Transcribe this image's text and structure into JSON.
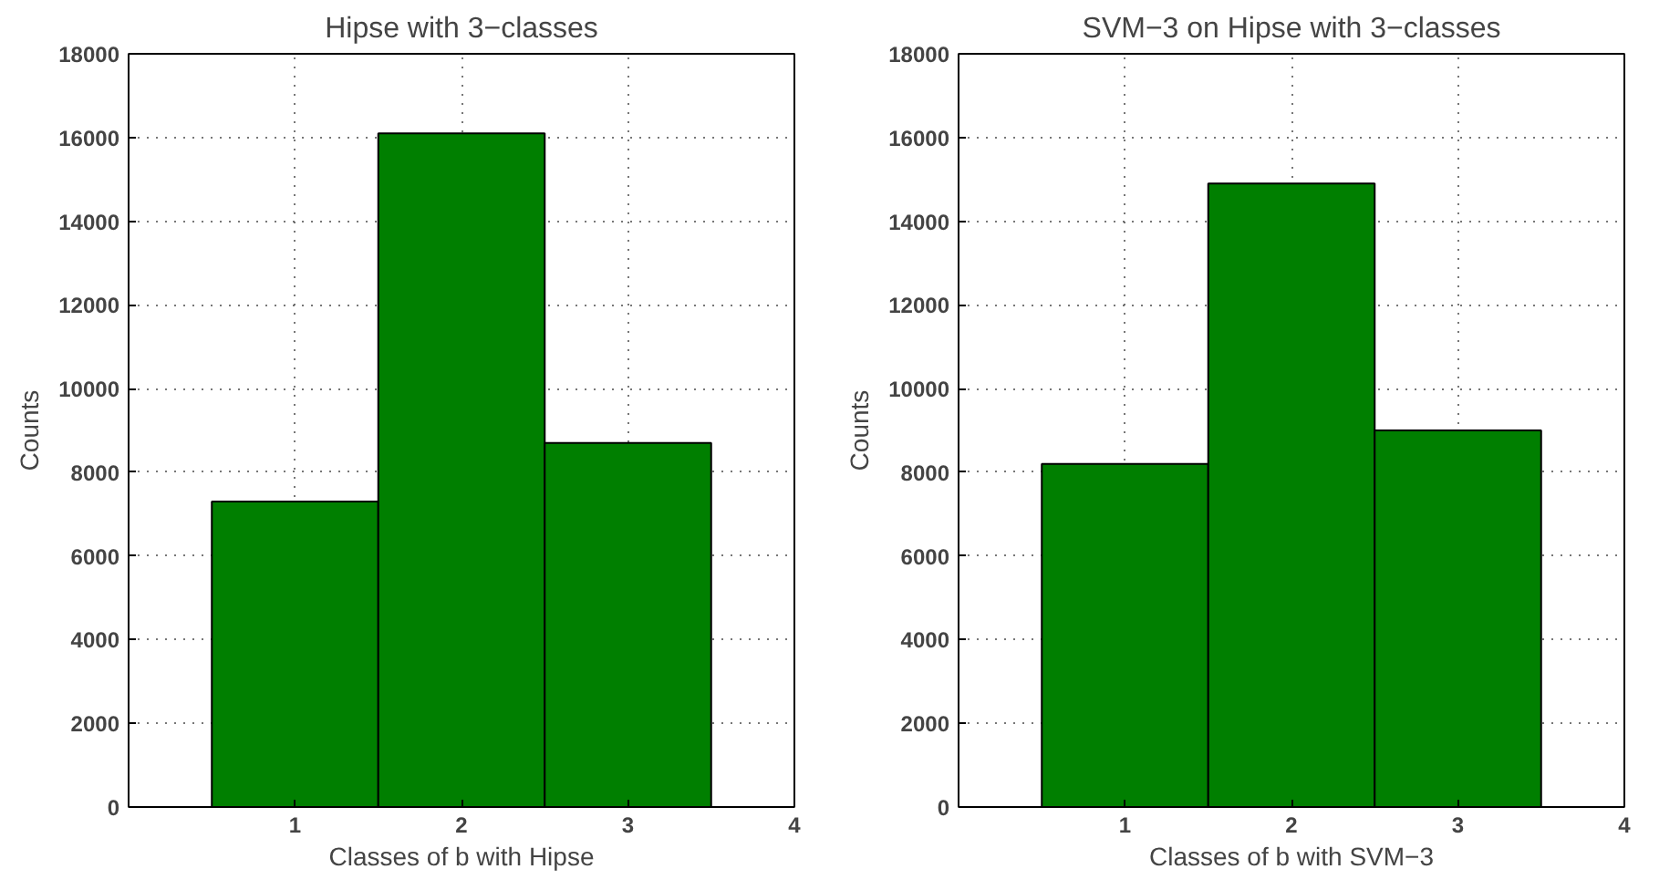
{
  "chart_data": [
    {
      "type": "histogram",
      "title": "Hipse with 3−classes",
      "xlabel": "Classes of b with Hipse",
      "ylabel": "Counts",
      "bins": [
        0.5,
        1.5,
        2.5,
        3.5
      ],
      "values": [
        7300,
        16100,
        8700
      ],
      "color": "#007f00",
      "xlim": [
        0,
        4
      ],
      "xticks": [
        1,
        2,
        3,
        4
      ],
      "ylim": [
        0,
        18000
      ],
      "yticks": [
        0,
        2000,
        4000,
        6000,
        8000,
        10000,
        12000,
        14000,
        16000,
        18000
      ],
      "grid": true
    },
    {
      "type": "histogram",
      "title": "SVM−3 on Hipse with 3−classes",
      "xlabel": "Classes of b with SVM−3",
      "ylabel": "Counts",
      "bins": [
        0.5,
        1.5,
        2.5,
        3.5
      ],
      "values": [
        8200,
        14900,
        9000
      ],
      "color": "#007f00",
      "xlim": [
        0,
        4
      ],
      "xticks": [
        1,
        2,
        3,
        4
      ],
      "ylim": [
        0,
        18000
      ],
      "yticks": [
        0,
        2000,
        4000,
        6000,
        8000,
        10000,
        12000,
        14000,
        16000,
        18000
      ],
      "grid": true
    }
  ]
}
